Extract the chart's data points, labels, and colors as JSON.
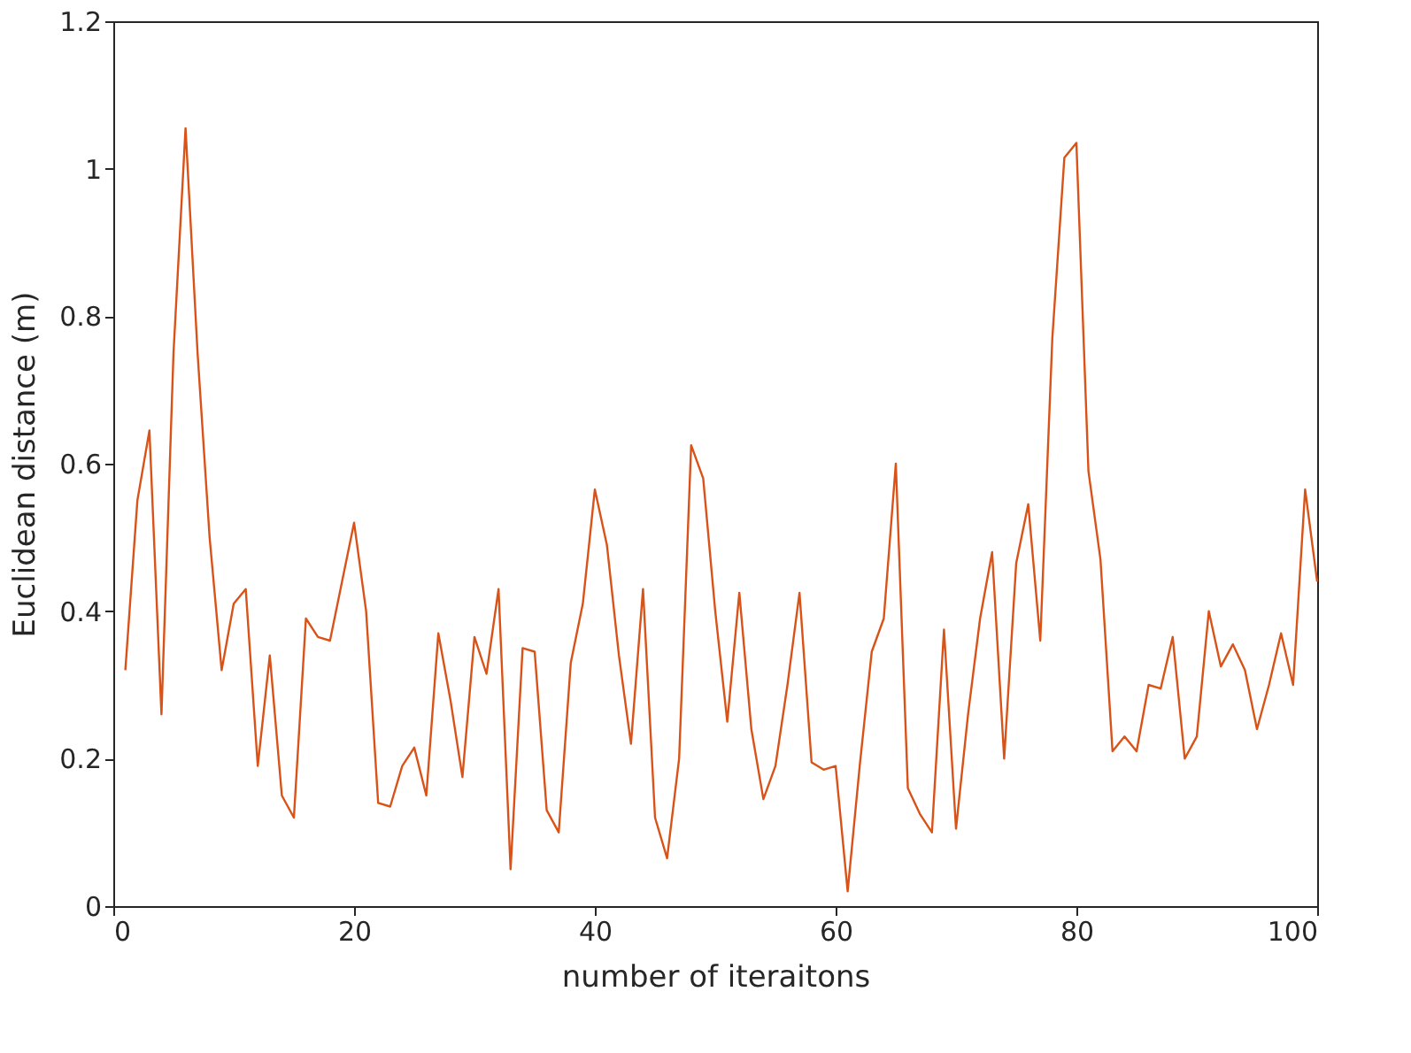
{
  "chart_data": {
    "type": "line",
    "xlabel": "number of iteraitons",
    "ylabel": "Euclidean distance (m)",
    "x": [
      1,
      2,
      3,
      4,
      5,
      6,
      7,
      8,
      9,
      10,
      11,
      12,
      13,
      14,
      15,
      16,
      17,
      18,
      19,
      20,
      21,
      22,
      23,
      24,
      25,
      26,
      27,
      28,
      29,
      30,
      31,
      32,
      33,
      34,
      35,
      36,
      37,
      38,
      39,
      40,
      41,
      42,
      43,
      44,
      45,
      46,
      47,
      48,
      49,
      50,
      51,
      52,
      53,
      54,
      55,
      56,
      57,
      58,
      59,
      60,
      61,
      62,
      63,
      64,
      65,
      66,
      67,
      68,
      69,
      70,
      71,
      72,
      73,
      74,
      75,
      76,
      77,
      78,
      79,
      80,
      81,
      82,
      83,
      84,
      85,
      86,
      87,
      88,
      89,
      90,
      91,
      92,
      93,
      94,
      95,
      96,
      97,
      98,
      99,
      100
    ],
    "series": [
      {
        "color": "#d95319",
        "values": [
          0.32,
          0.55,
          0.645,
          0.26,
          0.75,
          1.055,
          0.75,
          0.5,
          0.32,
          0.41,
          0.43,
          0.19,
          0.34,
          0.15,
          0.12,
          0.39,
          0.365,
          0.36,
          0.44,
          0.52,
          0.4,
          0.14,
          0.135,
          0.19,
          0.215,
          0.15,
          0.37,
          0.28,
          0.175,
          0.365,
          0.315,
          0.43,
          0.05,
          0.35,
          0.345,
          0.13,
          0.1,
          0.33,
          0.41,
          0.565,
          0.49,
          0.34,
          0.22,
          0.43,
          0.12,
          0.065,
          0.2,
          0.625,
          0.58,
          0.4,
          0.25,
          0.425,
          0.24,
          0.145,
          0.19,
          0.3,
          0.425,
          0.195,
          0.185,
          0.19,
          0.02,
          0.19,
          0.345,
          0.39,
          0.6,
          0.16,
          0.125,
          0.1,
          0.375,
          0.105,
          0.26,
          0.39,
          0.48,
          0.2,
          0.465,
          0.545,
          0.36,
          0.77,
          1.015,
          1.035,
          0.59,
          0.47,
          0.21,
          0.23,
          0.21,
          0.3,
          0.295,
          0.365,
          0.2,
          0.23,
          0.4,
          0.325,
          0.355,
          0.32,
          0.24,
          0.3,
          0.37,
          0.3,
          0.565,
          0.44
        ]
      }
    ],
    "xlim": [
      0,
      100
    ],
    "xticks": [
      0,
      20,
      40,
      60,
      80,
      100
    ],
    "ylim": [
      0,
      1.2
    ],
    "yticks": [
      0,
      0.2,
      0.4,
      0.6,
      0.8,
      1,
      1.2
    ],
    "grid": false,
    "legend": false,
    "marker": "none",
    "line_style": "solid"
  }
}
